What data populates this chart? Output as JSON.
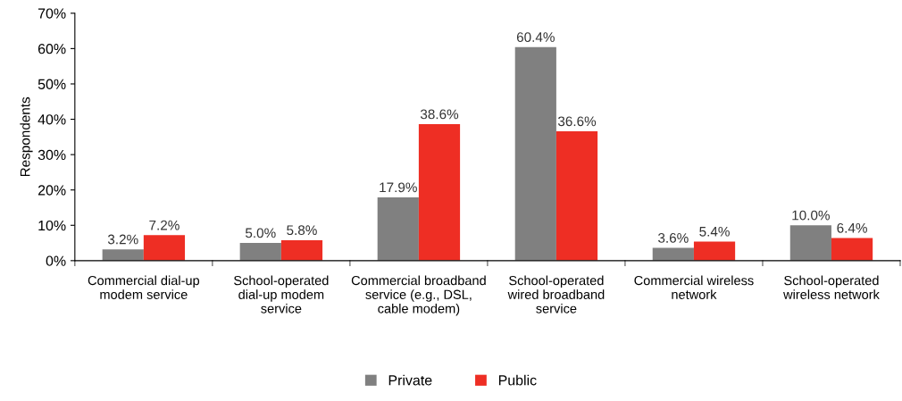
{
  "chart_data": {
    "type": "bar",
    "ylabel": "Respondents",
    "categories": [
      "Commercial dial-up modem service",
      "School-operated dial-up modem service",
      "Commercial broadband service (e.g., DSL, cable modem)",
      "School-operated wired broadband service",
      "Commercial wireless network",
      "School-operated wireless network"
    ],
    "series": [
      {
        "name": "Private",
        "color": "#808080",
        "values": [
          3.2,
          5.0,
          17.9,
          60.4,
          3.6,
          10.0
        ],
        "value_labels": [
          "3.2%",
          "5.0%",
          "17.9%",
          "60.4%",
          "3.6%",
          "10.0%"
        ]
      },
      {
        "name": "Public",
        "color": "#ee2e24",
        "values": [
          7.2,
          5.8,
          38.6,
          36.6,
          5.4,
          6.4
        ],
        "value_labels": [
          "7.2%",
          "5.8%",
          "38.6%",
          "36.6%",
          "5.4%",
          "6.4%"
        ]
      }
    ],
    "ylim": [
      0,
      70
    ],
    "yticks": [
      {
        "value": 0,
        "label": "0%"
      },
      {
        "value": 10,
        "label": "10%"
      },
      {
        "value": 20,
        "label": "20%"
      },
      {
        "value": 30,
        "label": "30%"
      },
      {
        "value": 40,
        "label": "40%"
      },
      {
        "value": 50,
        "label": "50%"
      },
      {
        "value": 60,
        "label": "60%"
      },
      {
        "value": 70,
        "label": "70%"
      }
    ],
    "grid": false,
    "legend": "bottom"
  }
}
